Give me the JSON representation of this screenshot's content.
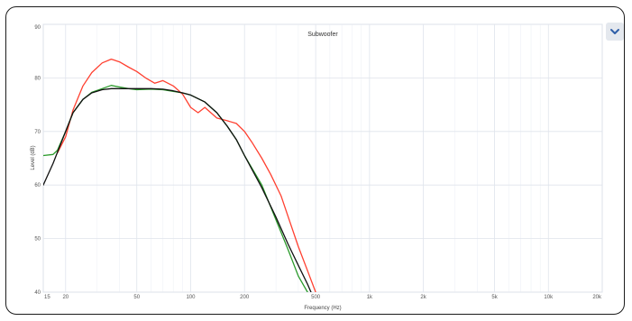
{
  "chart_data": {
    "type": "line",
    "title": "Subwoofer",
    "xlabel": "Frequency (Hz)",
    "ylabel": "Level (dB)",
    "x_scale": "log",
    "xlim": [
      15,
      20000
    ],
    "ylim": [
      40,
      90
    ],
    "x_ticks": [
      15,
      20,
      50,
      100,
      200,
      500,
      1000,
      2000,
      5000,
      10000,
      20000
    ],
    "x_tick_labels": [
      "15",
      "20",
      "50",
      "100",
      "200",
      "500",
      "1k",
      "2k",
      "5k",
      "10k",
      "20k"
    ],
    "y_ticks": [
      40,
      50,
      60,
      70,
      80,
      90
    ],
    "grid": true,
    "series": [
      {
        "color": "#ff4030",
        "x": [
          18,
          20,
          22,
          25,
          28,
          32,
          36,
          40,
          45,
          50,
          56,
          63,
          70,
          80,
          90,
          100,
          110,
          120,
          140,
          160,
          180,
          200,
          220,
          250,
          280,
          320,
          360,
          400,
          450,
          500
        ],
        "y": [
          66,
          69,
          74,
          78.5,
          81,
          82.8,
          83.5,
          83,
          82,
          81.2,
          80,
          79,
          79.5,
          78.5,
          77,
          74.5,
          73.5,
          74.5,
          72.5,
          72,
          71.5,
          70,
          68,
          65,
          62,
          58,
          53,
          48.5,
          44,
          40
        ]
      },
      {
        "color": "#2a9a2a",
        "x": [
          15,
          17,
          18,
          20,
          22,
          25,
          28,
          32,
          36,
          40,
          45,
          50,
          60,
          70,
          80,
          90,
          100,
          120,
          140,
          160,
          180,
          200,
          250,
          300,
          350,
          400,
          450
        ],
        "y": [
          65.5,
          65.7,
          66.5,
          70,
          73.5,
          76,
          77.3,
          78,
          78.6,
          78.3,
          78,
          77.8,
          77.9,
          77.8,
          77.5,
          77.2,
          76.8,
          75.5,
          73.5,
          71,
          68.5,
          65.5,
          60,
          53.5,
          48,
          43,
          40
        ]
      },
      {
        "color": "#111111",
        "x": [
          15,
          17,
          20,
          22,
          25,
          28,
          32,
          36,
          40,
          50,
          60,
          70,
          80,
          90,
          100,
          120,
          140,
          160,
          180,
          200,
          250,
          300,
          350,
          400,
          450,
          500
        ],
        "y": [
          60,
          64,
          70,
          73.5,
          76,
          77.2,
          77.8,
          78,
          78,
          78,
          78,
          77.9,
          77.6,
          77.2,
          76.8,
          75.5,
          73.5,
          71,
          68.5,
          65.5,
          59.5,
          54,
          49,
          45,
          41.5,
          38
        ]
      }
    ]
  }
}
